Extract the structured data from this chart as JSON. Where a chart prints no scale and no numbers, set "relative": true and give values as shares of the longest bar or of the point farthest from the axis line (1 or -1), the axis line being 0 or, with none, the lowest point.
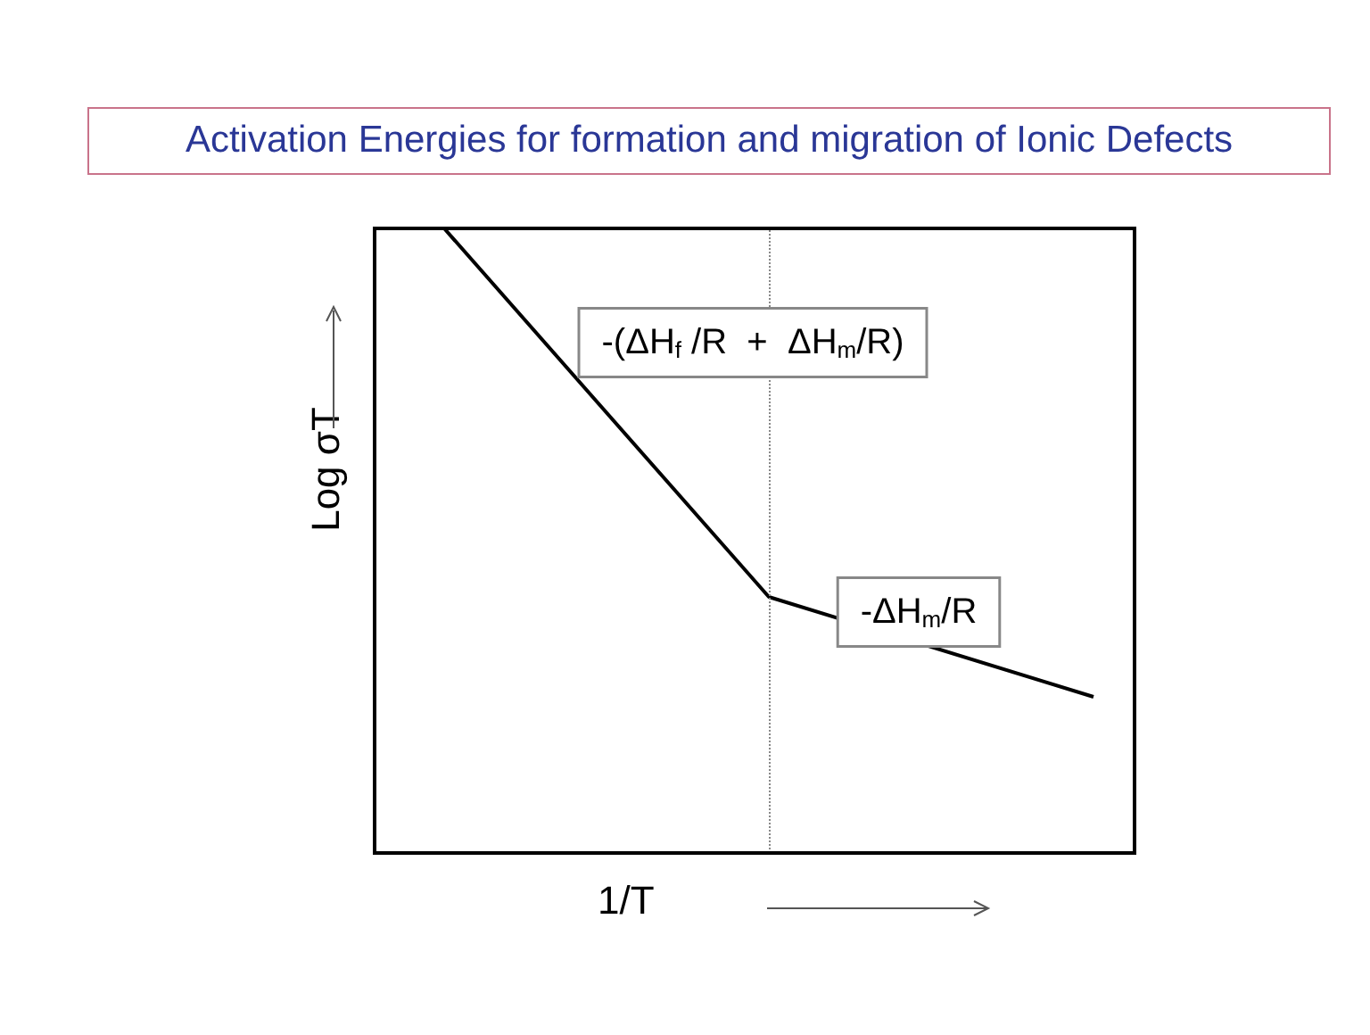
{
  "chart_data": {
    "type": "line",
    "title": "Activation Energies for formation and migration of Ionic Defects",
    "xlabel": "1/T",
    "ylabel": "Log σT",
    "relative": true,
    "categories": [
      null,
      null,
      null
    ],
    "series": [
      {
        "color": "#000000",
        "values": [
          1,
          0.41,
          0.25
        ]
      }
    ],
    "ref_lines": [
      {
        "axis": "x",
        "line_style": "dotted",
        "color": "#888888"
      }
    ],
    "annotations": [
      "-(ΔH$_{f}$ /R  +  ΔH$_{m}$/R)",
      "-ΔH$_{m}$/R"
    ]
  }
}
